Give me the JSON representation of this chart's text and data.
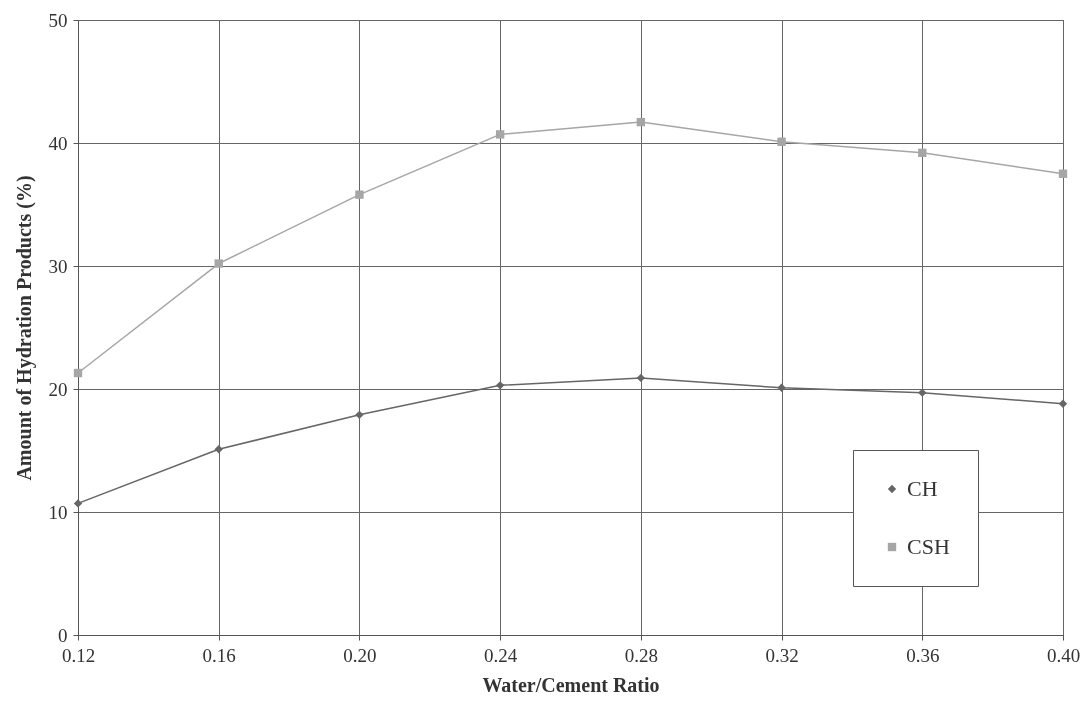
{
  "chart_data": {
    "type": "line",
    "xlabel": "Water/Cement Ratio",
    "ylabel": "Amount of Hydration Products (%)",
    "x": [
      0.12,
      0.16,
      0.2,
      0.24,
      0.28,
      0.32,
      0.36,
      0.4
    ],
    "series": [
      {
        "name": "CH",
        "color": "#666666",
        "marker": "diamond",
        "values": [
          10.7,
          15.1,
          17.9,
          20.3,
          20.9,
          20.1,
          19.7,
          18.8
        ]
      },
      {
        "name": "CSH",
        "color": "#a6a6a6",
        "marker": "square",
        "values": [
          21.3,
          30.2,
          35.8,
          40.7,
          41.7,
          40.1,
          39.2,
          37.5
        ]
      }
    ],
    "xlim": [
      0.12,
      0.4
    ],
    "xticks": [
      0.12,
      0.16,
      {
        "value": 0.2,
        "label": "0.20"
      },
      0.24,
      0.28,
      0.32,
      0.36,
      {
        "value": 0.4,
        "label": "0.40"
      }
    ],
    "ylim": [
      0,
      50
    ],
    "yticks": [
      0,
      10,
      20,
      30,
      40,
      50
    ],
    "grid": true,
    "legend": "right"
  }
}
